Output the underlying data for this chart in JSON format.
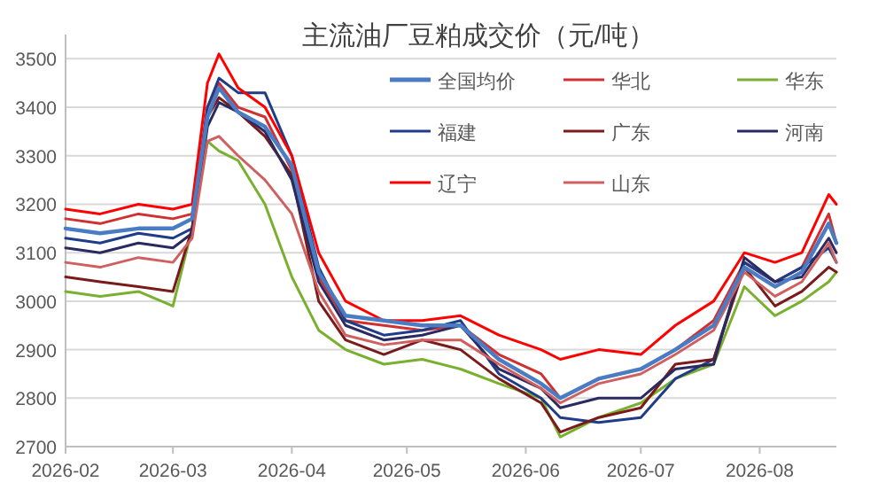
{
  "chart_data": {
    "type": "line",
    "title": "主流油厂豆粕成交价（元/吨）",
    "x": [
      "2026-02-01",
      "2026-02-10",
      "2026-02-20",
      "2026-03-01",
      "2026-03-06",
      "2026-03-10",
      "2026-03-13",
      "2026-03-18",
      "2026-03-25",
      "2026-04-01",
      "2026-04-08",
      "2026-04-15",
      "2026-04-25",
      "2026-05-05",
      "2026-05-15",
      "2026-05-25",
      "2026-06-05",
      "2026-06-10",
      "2026-06-20",
      "2026-07-01",
      "2026-07-10",
      "2026-07-20",
      "2026-07-28",
      "2026-08-05",
      "2026-08-12",
      "2026-08-19",
      "2026-08-21"
    ],
    "series": [
      {
        "name": "全国均价",
        "color": "#4a7cc4",
        "values": [
          3150,
          3140,
          3150,
          3150,
          3170,
          3380,
          3440,
          3390,
          3360,
          3280,
          3060,
          2970,
          2960,
          2950,
          2950,
          2880,
          2830,
          2800,
          2840,
          2860,
          2900,
          2950,
          3070,
          3030,
          3060,
          3160,
          3120
        ]
      },
      {
        "name": "华北",
        "color": "#d03030",
        "values": [
          3170,
          3160,
          3180,
          3170,
          3180,
          3400,
          3450,
          3400,
          3380,
          3270,
          3050,
          2960,
          2950,
          2940,
          2950,
          2890,
          2850,
          2800,
          2840,
          2860,
          2900,
          2960,
          3080,
          3040,
          3070,
          3180,
          3120
        ]
      },
      {
        "name": "华东",
        "color": "#7ab030",
        "values": [
          3020,
          3010,
          3020,
          2990,
          3150,
          3330,
          3310,
          3290,
          3200,
          3050,
          2940,
          2900,
          2870,
          2880,
          2860,
          2830,
          2800,
          2720,
          2760,
          2790,
          2840,
          2870,
          3030,
          2970,
          3000,
          3040,
          3060
        ]
      },
      {
        "name": "福建",
        "color": "#1f3c88",
        "values": [
          3130,
          3120,
          3140,
          3130,
          3150,
          3400,
          3460,
          3430,
          3430,
          3300,
          3070,
          2960,
          2930,
          2940,
          2960,
          2850,
          2800,
          2760,
          2750,
          2760,
          2840,
          2880,
          3080,
          3040,
          3070,
          3110,
          3080
        ]
      },
      {
        "name": "广东",
        "color": "#7a1a1a",
        "values": [
          3050,
          3040,
          3030,
          3020,
          3150,
          3380,
          3420,
          3390,
          3340,
          3260,
          3000,
          2920,
          2890,
          2920,
          2900,
          2840,
          2790,
          2730,
          2760,
          2780,
          2870,
          2880,
          3070,
          2990,
          3020,
          3070,
          3060
        ]
      },
      {
        "name": "河南",
        "color": "#2a2a60",
        "values": [
          3110,
          3100,
          3120,
          3110,
          3140,
          3360,
          3410,
          3390,
          3350,
          3250,
          3040,
          2950,
          2920,
          2930,
          2950,
          2860,
          2820,
          2780,
          2800,
          2800,
          2860,
          2870,
          3090,
          3040,
          3050,
          3130,
          3100
        ]
      },
      {
        "name": "辽宁",
        "color": "#ff0000",
        "values": [
          3190,
          3180,
          3200,
          3190,
          3200,
          3450,
          3510,
          3440,
          3400,
          3300,
          3100,
          3000,
          2960,
          2960,
          2970,
          2930,
          2900,
          2880,
          2900,
          2890,
          2950,
          3000,
          3100,
          3080,
          3100,
          3220,
          3200
        ]
      },
      {
        "name": "山东",
        "color": "#d06060",
        "values": [
          3080,
          3070,
          3090,
          3080,
          3130,
          3330,
          3340,
          3300,
          3250,
          3180,
          3020,
          2930,
          2910,
          2920,
          2920,
          2870,
          2820,
          2790,
          2830,
          2850,
          2890,
          2940,
          3060,
          3010,
          3040,
          3120,
          3080
        ]
      }
    ],
    "xlim": [
      "2026-02-01",
      "2026-08-21"
    ],
    "xticks": [
      {
        "value": "2026-02-01",
        "label": "2026-02"
      },
      {
        "value": "2026-03-01",
        "label": "2026-03"
      },
      {
        "value": "2026-04-01",
        "label": "2026-04"
      },
      {
        "value": "2026-05-01",
        "label": "2026-05"
      },
      {
        "value": "2026-06-01",
        "label": "2026-06"
      },
      {
        "value": "2026-07-01",
        "label": "2026-07"
      },
      {
        "value": "2026-08-01",
        "label": "2026-08"
      }
    ],
    "ylim": [
      2700,
      3550
    ],
    "yticks": [
      2700,
      2800,
      2900,
      3000,
      3100,
      3200,
      3300,
      3400,
      3500
    ],
    "grid": "y",
    "legend": "top right",
    "marker": "none",
    "line_style": "solid"
  }
}
